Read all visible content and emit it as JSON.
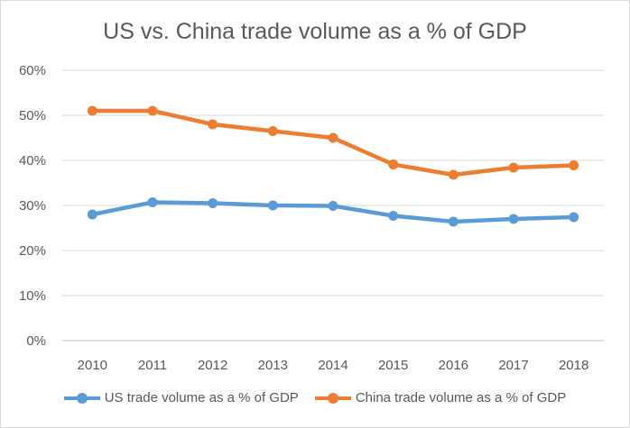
{
  "chart_data": {
    "type": "line",
    "title": "US vs. China trade volume as a % of GDP",
    "xlabel": "",
    "ylabel": "",
    "categories": [
      "2010",
      "2011",
      "2012",
      "2013",
      "2014",
      "2015",
      "2016",
      "2017",
      "2018"
    ],
    "y_ticks": [
      "0%",
      "10%",
      "20%",
      "30%",
      "40%",
      "50%",
      "60%"
    ],
    "ylim": [
      0,
      60
    ],
    "grid": true,
    "legend_position": "bottom",
    "series": [
      {
        "name": "US trade volume as a % of GDP",
        "color": "#5b9bd5",
        "values": [
          28.0,
          30.7,
          30.5,
          30.0,
          29.9,
          27.7,
          26.4,
          27.0,
          27.4
        ]
      },
      {
        "name": "China trade volume as a % of GDP",
        "color": "#ed7d31",
        "values": [
          51.0,
          51.0,
          48.0,
          46.5,
          45.0,
          39.1,
          36.8,
          38.4,
          38.9
        ]
      }
    ]
  }
}
